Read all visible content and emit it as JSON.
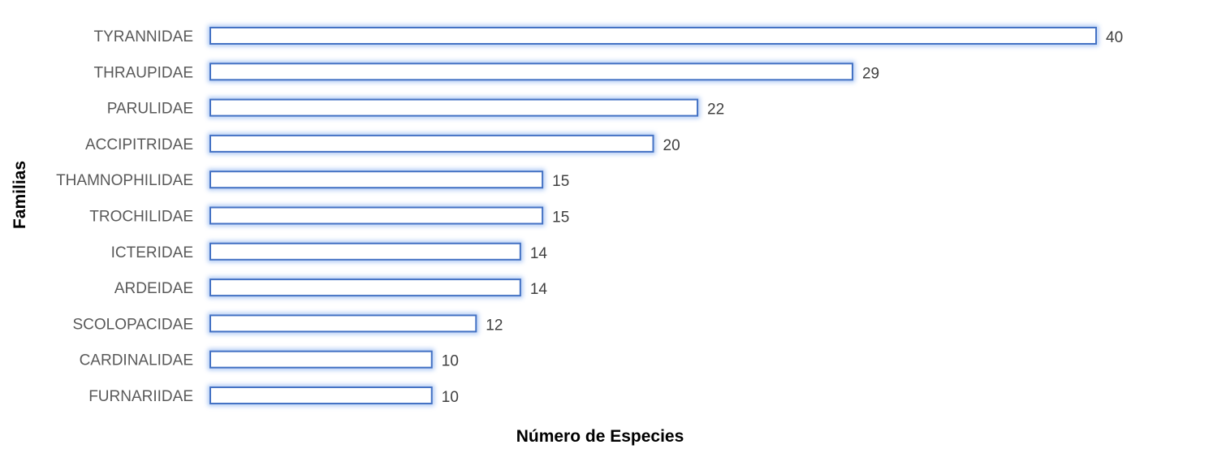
{
  "chart_data": {
    "type": "bar",
    "orientation": "horizontal",
    "categories": [
      "TYRANNIDAE",
      "THRAUPIDAE",
      "PARULIDAE",
      "ACCIPITRIDAE",
      "THAMNOPHILIDAE",
      "TROCHILIDAE",
      "ICTERIDAE",
      "ARDEIDAE",
      "SCOLOPACIDAE",
      "CARDINALIDAE",
      "FURNARIIDAE"
    ],
    "values": [
      40,
      29,
      22,
      20,
      15,
      15,
      14,
      14,
      12,
      10,
      10
    ],
    "title": "",
    "xlabel": "Número de Especies",
    "ylabel": "Familias",
    "xlim": [
      0,
      40
    ],
    "grid": false,
    "legend": "none",
    "data_labels": true,
    "colors": {
      "bar_fill": "#ffffff",
      "bar_stroke": "#4472c4",
      "bar_glow": "#8fb4f0"
    }
  }
}
